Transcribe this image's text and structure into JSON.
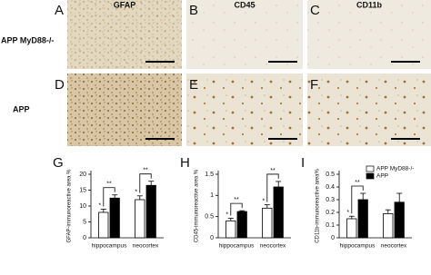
{
  "image_panels": {
    "letters": [
      "A",
      "B",
      "C",
      "D",
      "E",
      "F"
    ],
    "columns": [
      "GFAP",
      "CD45",
      "CD11b"
    ],
    "rows": [
      "APP MyD88-/-",
      "APP"
    ]
  },
  "chart_data": [
    {
      "type": "bar",
      "panel": "G",
      "ylabel": "GFAP-immunoreactive area %",
      "categories": [
        "hippocampus",
        "neocortex"
      ],
      "series": [
        {
          "color": "#ffffff",
          "values": [
            8,
            12
          ],
          "errors": [
            1,
            1.2
          ]
        },
        {
          "color": "#000000",
          "values": [
            12.5,
            16.5
          ],
          "errors": [
            1,
            1.3
          ]
        }
      ],
      "ylim": [
        0,
        20
      ],
      "yticks": [
        0,
        5,
        10,
        15,
        20
      ],
      "annotations": [
        "*",
        "**",
        "*",
        "**"
      ]
    },
    {
      "type": "bar",
      "panel": "H",
      "ylabel": "CD45-immunoreactive area %",
      "categories": [
        "hippocampus",
        "neocortex"
      ],
      "series": [
        {
          "color": "#ffffff",
          "values": [
            0.4,
            0.7
          ],
          "errors": [
            0.06,
            0.08
          ]
        },
        {
          "color": "#000000",
          "values": [
            0.62,
            1.2
          ],
          "errors": [
            0.02,
            0.13
          ]
        }
      ],
      "ylim": [
        0,
        1.5
      ],
      "yticks": [
        0,
        0.5,
        1,
        1.5
      ],
      "annotations": [
        "*",
        "**",
        "*",
        "**"
      ]
    },
    {
      "type": "bar",
      "panel": "I",
      "ylabel": "CD11b-immunoreactive area%",
      "categories": [
        "hippocampus",
        "neocortex"
      ],
      "series": [
        {
          "name": "APP MyD88-/-",
          "color": "#ffffff",
          "values": [
            0.15,
            0.19
          ],
          "errors": [
            0.02,
            0.03
          ]
        },
        {
          "name": "APP",
          "color": "#000000",
          "values": [
            0.3,
            0.28
          ],
          "errors": [
            0.05,
            0.07
          ]
        }
      ],
      "ylim": [
        0,
        0.5
      ],
      "yticks": [
        0,
        0.1,
        0.2,
        0.3,
        0.4,
        0.5
      ],
      "legend": "upper right",
      "annotations": [
        "*",
        "**"
      ]
    }
  ]
}
